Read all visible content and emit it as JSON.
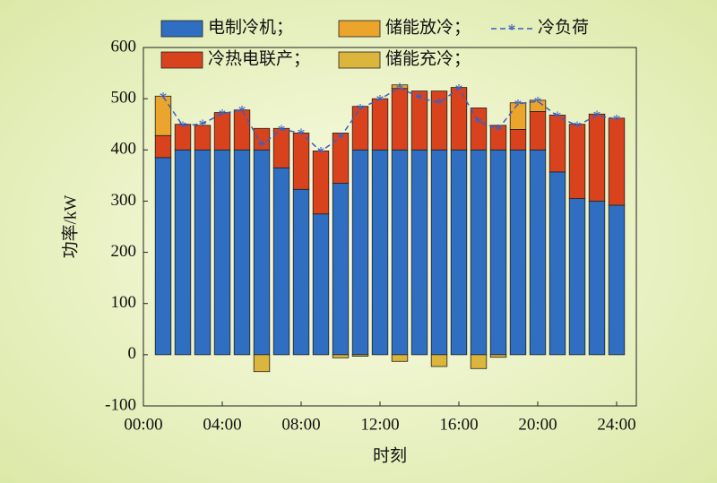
{
  "chart_data": {
    "type": "stacked_bar_line",
    "x_label": "时刻",
    "y_label": "功率/kW",
    "x": [
      1,
      2,
      3,
      4,
      5,
      6,
      7,
      8,
      9,
      10,
      11,
      12,
      13,
      14,
      15,
      16,
      17,
      18,
      19,
      20,
      21,
      22,
      23,
      24
    ],
    "xlim": [
      0,
      25
    ],
    "xticks": [
      {
        "value": 0,
        "label": "00:00"
      },
      {
        "value": 4,
        "label": "04:00"
      },
      {
        "value": 8,
        "label": "08:00"
      },
      {
        "value": 12,
        "label": "12:00"
      },
      {
        "value": 16,
        "label": "16:00"
      },
      {
        "value": 20,
        "label": "20:00"
      },
      {
        "value": 24,
        "label": "24:00"
      }
    ],
    "ylim": [
      -100,
      600
    ],
    "yticks": [
      -100,
      0,
      100,
      200,
      300,
      400,
      500,
      600
    ],
    "series": [
      {
        "name": "电制冷机；",
        "color": "#2f6ec0",
        "kind": "bar",
        "values": [
          385,
          400,
          400,
          400,
          400,
          400,
          365,
          323,
          275,
          335,
          400,
          400,
          400,
          400,
          400,
          400,
          400,
          400,
          400,
          400,
          357,
          305,
          300,
          292
        ]
      },
      {
        "name": "冷热电联产；",
        "color": "#d8431e",
        "kind": "bar",
        "values": [
          43,
          50,
          48,
          73,
          78,
          42,
          77,
          110,
          123,
          98,
          85,
          100,
          120,
          115,
          115,
          122,
          82,
          48,
          40,
          75,
          111,
          145,
          170,
          170
        ]
      },
      {
        "name": "储能放冷；",
        "color": "#eba42c",
        "kind": "bar",
        "values": [
          77,
          0,
          0,
          0,
          0,
          0,
          0,
          0,
          0,
          0,
          0,
          0,
          7,
          0,
          0,
          0,
          0,
          0,
          52,
          22,
          0,
          0,
          0,
          0
        ]
      },
      {
        "name": "储能充冷；",
        "color": "#dcb53c",
        "kind": "bar",
        "values": [
          0,
          0,
          0,
          0,
          0,
          -33,
          0,
          0,
          0,
          -6,
          -3,
          0,
          -13,
          0,
          -23,
          0,
          -27,
          -5,
          0,
          0,
          0,
          0,
          0,
          0
        ]
      },
      {
        "name": "冷负荷",
        "color": "#3b5fc2",
        "kind": "line",
        "values": [
          504,
          447,
          451,
          471,
          478,
          410,
          440,
          433,
          397,
          425,
          481,
          499,
          522,
          502,
          492,
          520,
          455,
          441,
          490,
          495,
          466,
          447,
          468,
          460
        ]
      }
    ]
  }
}
